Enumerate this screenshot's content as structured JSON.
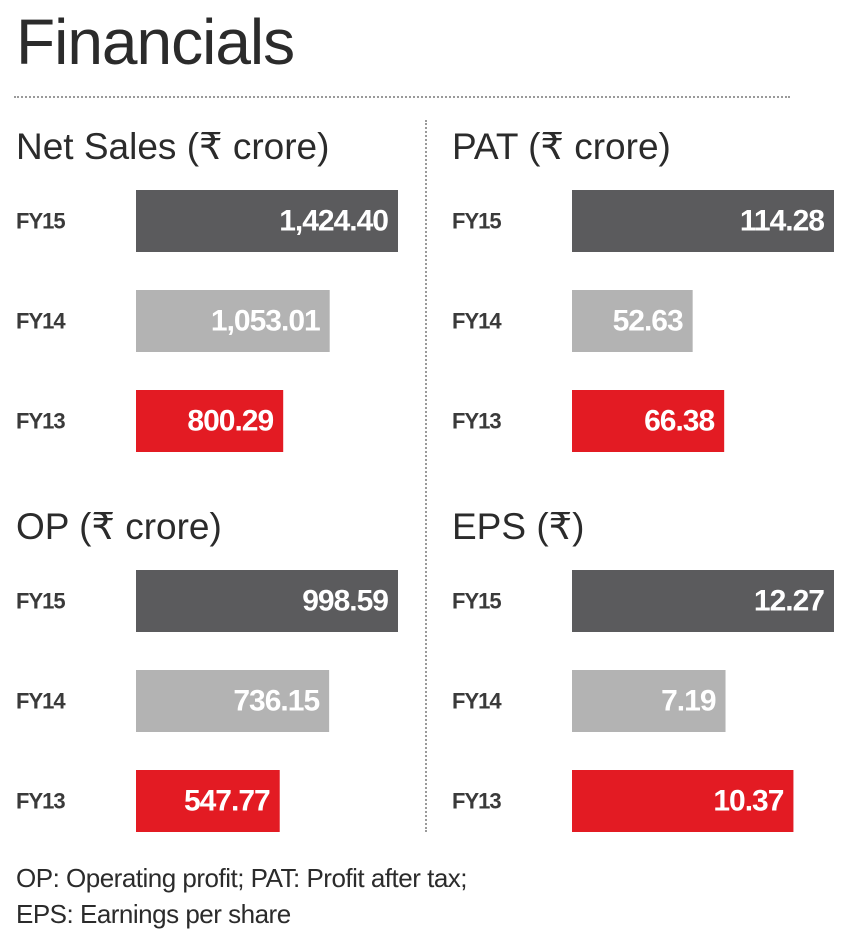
{
  "title": "Financials",
  "colors": {
    "fy15": "#5b5b5d",
    "fy14": "#b3b3b3",
    "fy13": "#e31b23"
  },
  "chart_data": [
    {
      "type": "bar",
      "title": "Net Sales (₹ crore)",
      "categories": [
        "FY15",
        "FY14",
        "FY13"
      ],
      "values": [
        1424.4,
        1053.01,
        800.29
      ],
      "labels": [
        "1,424.40",
        "1,053.01",
        "800.29"
      ]
    },
    {
      "type": "bar",
      "title": "PAT (₹ crore)",
      "categories": [
        "FY15",
        "FY14",
        "FY13"
      ],
      "values": [
        114.28,
        52.63,
        66.38
      ],
      "labels": [
        "114.28",
        "52.63",
        "66.38"
      ]
    },
    {
      "type": "bar",
      "title": "OP (₹ crore)",
      "categories": [
        "FY15",
        "FY14",
        "FY13"
      ],
      "values": [
        998.59,
        736.15,
        547.77
      ],
      "labels": [
        "998.59",
        "736.15",
        "547.77"
      ]
    },
    {
      "type": "bar",
      "title": "EPS (₹)",
      "categories": [
        "FY15",
        "FY14",
        "FY13"
      ],
      "values": [
        12.27,
        7.19,
        10.37
      ],
      "labels": [
        "12.27",
        "7.19",
        "10.37"
      ]
    }
  ],
  "footnote": {
    "line1": "OP: Operating profit; PAT: Profit after tax;",
    "line2": "EPS: Earnings per share"
  }
}
